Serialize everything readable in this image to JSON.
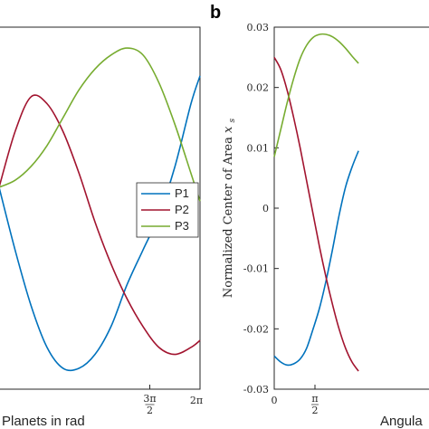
{
  "chart_data": [
    {
      "type": "line",
      "panel": "a",
      "title": "",
      "xlabel": "Planets in rad",
      "ylabel": "",
      "xlim": [
        0,
        6.2832
      ],
      "x_ticks": [
        {
          "value": 4.7124,
          "label_num": "3π",
          "label_den": "2"
        },
        {
          "value": 6.2832,
          "label": "2π"
        }
      ],
      "legend": {
        "position": "right",
        "entries": [
          "P1",
          "P2",
          "P3"
        ]
      },
      "series": [
        {
          "name": "P1",
          "color": "#0072BD",
          "x": [
            0,
            0.5,
            1.0,
            1.5,
            2.0,
            2.5,
            3.0,
            3.5,
            4.0,
            4.5,
            5.0,
            5.5,
            6.0,
            6.2832
          ],
          "y": [
            0.14,
            0.05,
            -0.03,
            -0.09,
            -0.12,
            -0.12,
            -0.1,
            -0.06,
            0.0,
            0.05,
            0.1,
            0.17,
            0.26,
            0.3
          ]
        },
        {
          "name": "P2",
          "color": "#A2142F",
          "x": [
            0,
            0.5,
            1.0,
            1.5,
            2.0,
            2.5,
            3.0,
            3.5,
            4.0,
            4.5,
            5.0,
            5.5,
            6.0,
            6.2832
          ],
          "y": [
            0.14,
            0.22,
            0.27,
            0.26,
            0.22,
            0.16,
            0.09,
            0.03,
            -0.02,
            -0.06,
            -0.09,
            -0.1,
            -0.09,
            -0.08
          ]
        },
        {
          "name": "P3",
          "color": "#77AC30",
          "x": [
            0,
            0.5,
            1.0,
            1.5,
            2.0,
            2.5,
            3.0,
            3.5,
            4.0,
            4.5,
            5.0,
            5.5,
            6.0,
            6.2832
          ],
          "y": [
            0.14,
            0.15,
            0.17,
            0.2,
            0.24,
            0.28,
            0.31,
            0.33,
            0.34,
            0.33,
            0.29,
            0.23,
            0.16,
            0.12
          ]
        }
      ]
    },
    {
      "type": "line",
      "panel": "b",
      "title": "",
      "xlabel": "Angula",
      "ylabel": "Normalized Center of Area x_s",
      "xlim": [
        0,
        6.2832
      ],
      "ylim": [
        -0.03,
        0.03
      ],
      "x_ticks": [
        {
          "value": 0,
          "label": "0"
        },
        {
          "value": 1.5708,
          "label_num": "π",
          "label_den": "2"
        }
      ],
      "y_ticks": [
        {
          "value": 0.03,
          "label": "0.03"
        },
        {
          "value": 0.02,
          "label": "0.02"
        },
        {
          "value": 0.01,
          "label": "0.01"
        },
        {
          "value": 0,
          "label": "0"
        },
        {
          "value": -0.01,
          "label": "-0.01"
        },
        {
          "value": -0.02,
          "label": "-0.02"
        },
        {
          "value": -0.03,
          "label": "-0.03"
        }
      ],
      "series": [
        {
          "name": "P1",
          "color": "#0072BD",
          "x": [
            0,
            0.25,
            0.5,
            0.75,
            1.0,
            1.25,
            1.5,
            1.75,
            2.0,
            2.25,
            2.5,
            2.75,
            3.0,
            3.25
          ],
          "y": [
            -0.0245,
            -0.0255,
            -0.026,
            -0.0258,
            -0.025,
            -0.0232,
            -0.02,
            -0.0165,
            -0.012,
            -0.0068,
            -0.0012,
            0.0035,
            0.0068,
            0.0095
          ]
        },
        {
          "name": "P2",
          "color": "#A2142F",
          "x": [
            0,
            0.25,
            0.5,
            0.75,
            1.0,
            1.25,
            1.5,
            1.75,
            2.0,
            2.25,
            2.5,
            2.75,
            3.0,
            3.25
          ],
          "y": [
            0.025,
            0.023,
            0.0195,
            0.015,
            0.01,
            0.0045,
            -0.001,
            -0.0065,
            -0.0115,
            -0.016,
            -0.02,
            -0.0232,
            -0.0255,
            -0.027
          ]
        },
        {
          "name": "P3",
          "color": "#77AC30",
          "x": [
            0,
            0.25,
            0.5,
            0.75,
            1.0,
            1.25,
            1.5,
            1.75,
            2.0,
            2.25,
            2.5,
            2.75,
            3.0,
            3.25
          ],
          "y": [
            0.0085,
            0.013,
            0.0175,
            0.0215,
            0.0248,
            0.027,
            0.0283,
            0.0288,
            0.0288,
            0.0284,
            0.0276,
            0.0265,
            0.0252,
            0.024
          ]
        }
      ]
    }
  ]
}
